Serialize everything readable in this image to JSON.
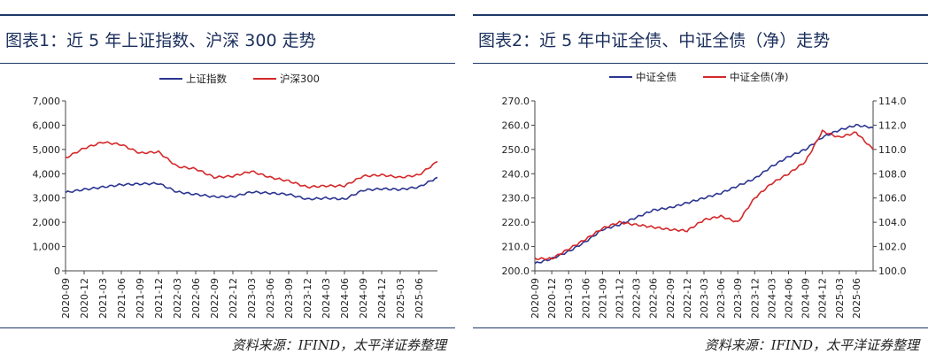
{
  "colors": {
    "navy": "#2b3590",
    "red": "#d4282a",
    "title": "#1a2e5c",
    "rule": "#1f3a68"
  },
  "dates": [
    "2020-09",
    "2020-12",
    "2021-03",
    "2021-06",
    "2021-09",
    "2021-12",
    "2022-03",
    "2022-06",
    "2022-09",
    "2022-12",
    "2023-03",
    "2023-06",
    "2023-09",
    "2023-12",
    "2024-03",
    "2024-06",
    "2024-09",
    "2024-12",
    "2025-03",
    "2025-06"
  ],
  "chart_data": [
    {
      "type": "line",
      "title": "图表1：近 5 年上证指数、沪深 300 走势",
      "legend": "top",
      "grid": false,
      "ylim": [
        0,
        7000
      ],
      "yticks": [
        "0",
        "1,000",
        "2,000",
        "3,000",
        "4,000",
        "5,000",
        "6,000",
        "7,000"
      ],
      "x": [
        "2020-09",
        "2020-12",
        "2021-03",
        "2021-06",
        "2021-09",
        "2021-12",
        "2022-03",
        "2022-06",
        "2022-09",
        "2022-12",
        "2023-03",
        "2023-06",
        "2023-09",
        "2023-12",
        "2024-03",
        "2024-06",
        "2024-09",
        "2024-12",
        "2025-03",
        "2025-06",
        "2025-08"
      ],
      "series": [
        {
          "name": "上证指数",
          "color": "#2b3590",
          "values": [
            3230,
            3350,
            3450,
            3550,
            3580,
            3600,
            3250,
            3150,
            3050,
            3050,
            3250,
            3200,
            3150,
            2950,
            3000,
            2950,
            3320,
            3380,
            3350,
            3450,
            3850
          ]
        },
        {
          "name": "沪深300",
          "color": "#d4282a",
          "values": [
            4650,
            5050,
            5300,
            5200,
            4850,
            4900,
            4300,
            4200,
            3850,
            3900,
            4100,
            3850,
            3700,
            3450,
            3500,
            3500,
            3900,
            3950,
            3850,
            3950,
            4500
          ]
        }
      ]
    },
    {
      "type": "line",
      "title": "图表2：近 5 年中证全债、中证全债（净）走势",
      "legend": "top",
      "grid": false,
      "ylim_left": [
        200,
        270
      ],
      "ylim_right": [
        100,
        114
      ],
      "yticks_left": [
        "200.0",
        "210.0",
        "220.0",
        "230.0",
        "240.0",
        "250.0",
        "260.0",
        "270.0"
      ],
      "yticks_right": [
        "100.0",
        "102.0",
        "104.0",
        "106.0",
        "108.0",
        "110.0",
        "112.0",
        "114.0"
      ],
      "x": [
        "2020-09",
        "2020-12",
        "2021-03",
        "2021-06",
        "2021-09",
        "2021-12",
        "2022-03",
        "2022-06",
        "2022-09",
        "2022-12",
        "2023-03",
        "2023-06",
        "2023-09",
        "2023-12",
        "2024-03",
        "2024-06",
        "2024-09",
        "2024-12",
        "2025-03",
        "2025-06",
        "2025-08"
      ],
      "series": [
        {
          "name": "中证全债",
          "color": "#2b3590",
          "axis": "left",
          "values": [
            203,
            205,
            208,
            212,
            217,
            219,
            222,
            225,
            226,
            228,
            230,
            232,
            235,
            238,
            243,
            247,
            250,
            255,
            258,
            260,
            259
          ]
        },
        {
          "name": "中证全债(净)",
          "color": "#d4282a",
          "axis": "right",
          "values": [
            101.0,
            101.0,
            101.8,
            102.6,
            103.5,
            104.0,
            103.8,
            103.6,
            103.4,
            103.3,
            104.2,
            104.5,
            104.0,
            106.0,
            107.2,
            108.0,
            109.0,
            111.5,
            111.0,
            111.4,
            110.0
          ]
        }
      ]
    }
  ],
  "sources": [
    "资料来源：IFIND，太平洋证券整理",
    "资料来源：IFIND，太平洋证券整理"
  ]
}
